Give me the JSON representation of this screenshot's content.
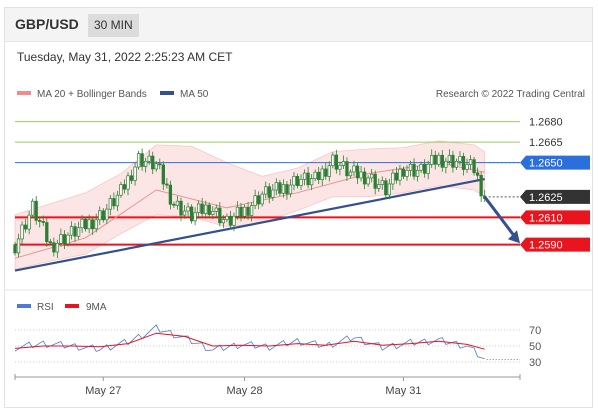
{
  "header": {
    "symbol": "GBP/USD",
    "timeframe": "30 MIN"
  },
  "timestamp": "Tuesday, May 31, 2022 2:25:23 AM CET",
  "legend": {
    "ma_bb": "MA 20 + Bollinger Bands",
    "ma50": "MA 50",
    "credit": "Research © 2022 Trading Central"
  },
  "rsi_legend": {
    "rsi": "RSI",
    "ma": "9MA"
  },
  "colors": {
    "candle": "#2e7d32",
    "bb": "#f4a0a0",
    "ma50": "#34508f",
    "level_red": "#e8141e",
    "level_blue": "#2a6fdb",
    "level_green": "#9ccc65",
    "rsi": "#4a7bd8",
    "rsi_ma": "#e8141e"
  },
  "chart_data": {
    "type": "line",
    "title": "",
    "xlabel": "",
    "ylabel": "",
    "price": {
      "ylim": [
        1.257,
        1.269
      ],
      "levels": [
        {
          "value": 1.268,
          "label": "1.2680",
          "style": "green"
        },
        {
          "value": 1.2665,
          "label": "1.2665",
          "style": "green"
        },
        {
          "value": 1.265,
          "label": "1.2650",
          "style": "blue"
        },
        {
          "value": 1.2625,
          "label": "1.2625",
          "style": "current"
        },
        {
          "value": 1.261,
          "label": "1.2610",
          "style": "red"
        },
        {
          "value": 1.259,
          "label": "1.2590",
          "style": "red"
        }
      ],
      "series": [
        {
          "name": "",
          "x": [
            0,
            5,
            10,
            15,
            20,
            25,
            30,
            35,
            40,
            45,
            50,
            55,
            60,
            65,
            70,
            75,
            80,
            85,
            90,
            95,
            100,
            105,
            110,
            115,
            120,
            125,
            130,
            133
          ],
          "values": [
            1.259,
            1.2617,
            1.2589,
            1.2597,
            1.2604,
            1.2613,
            1.2628,
            1.2653,
            1.2648,
            1.262,
            1.2611,
            1.2618,
            1.2606,
            1.2615,
            1.2627,
            1.263,
            1.2638,
            1.2637,
            1.2652,
            1.2642,
            1.264,
            1.263,
            1.2646,
            1.2644,
            1.2653,
            1.2651,
            1.2645,
            1.2625
          ]
        },
        {
          "name": "MA 20",
          "x": [
            0,
            20,
            40,
            60,
            80,
            100,
            120,
            133
          ],
          "values": [
            1.258,
            1.2595,
            1.263,
            1.2617,
            1.2628,
            1.2642,
            1.265,
            1.2643
          ]
        },
        {
          "name": "MA 50",
          "x": [
            0,
            133
          ],
          "values": [
            1.2571,
            1.2638
          ]
        }
      ],
      "bollinger": {
        "x": [
          0,
          10,
          20,
          30,
          40,
          50,
          60,
          70,
          80,
          90,
          100,
          110,
          120,
          130,
          133
        ],
        "upper": [
          1.2612,
          1.262,
          1.2628,
          1.2642,
          1.2663,
          1.2662,
          1.265,
          1.264,
          1.2646,
          1.2658,
          1.266,
          1.2661,
          1.2666,
          1.2663,
          1.2658
        ],
        "lower": [
          1.2572,
          1.2578,
          1.2583,
          1.2598,
          1.2612,
          1.261,
          1.2603,
          1.2606,
          1.2615,
          1.2625,
          1.2625,
          1.2628,
          1.2633,
          1.263,
          1.2625
        ]
      },
      "projection": {
        "from_x": 133,
        "from_value": 1.2625,
        "to_x": 143,
        "to_value": 1.2591
      }
    },
    "rsi": {
      "ylim": [
        20,
        80
      ],
      "levels": [
        70,
        50,
        30
      ],
      "tick_labels": [
        "70",
        "50",
        "30"
      ],
      "x": [
        0,
        8,
        16,
        24,
        32,
        40,
        48,
        56,
        64,
        72,
        80,
        88,
        96,
        104,
        112,
        120,
        128,
        133
      ],
      "values": [
        48,
        53,
        50,
        46,
        55,
        72,
        60,
        45,
        52,
        49,
        56,
        50,
        61,
        48,
        54,
        57,
        50,
        33
      ],
      "ma_values": [
        47,
        50,
        50,
        49,
        53,
        66,
        62,
        50,
        51,
        50,
        53,
        51,
        56,
        51,
        53,
        56,
        52,
        46
      ]
    },
    "x_ticks": [
      {
        "x": 25,
        "label": "May 27"
      },
      {
        "x": 65,
        "label": "May 28"
      },
      {
        "x": 110,
        "label": "May 31"
      }
    ],
    "x_range": [
      0,
      143
    ]
  }
}
